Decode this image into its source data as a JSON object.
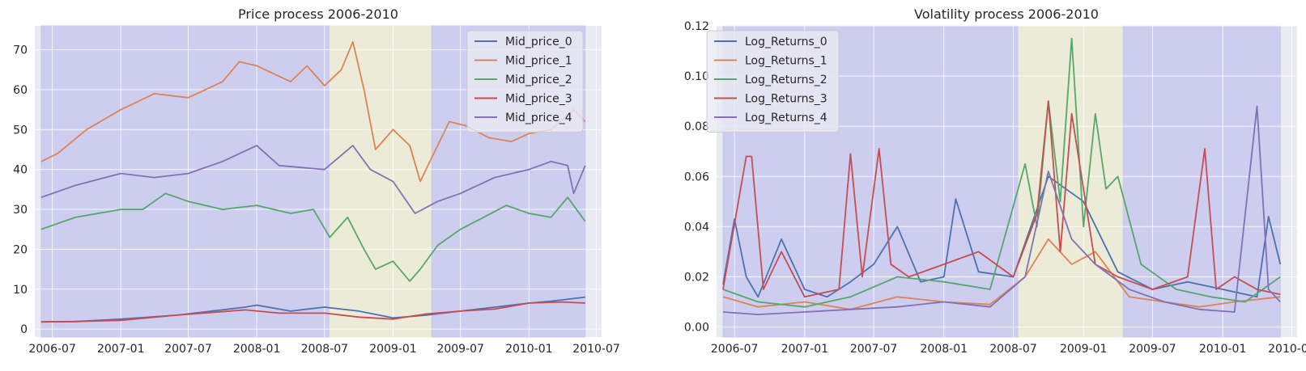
{
  "chart_data": [
    {
      "type": "line",
      "title": "Price process 2006-2010",
      "xlabel": "",
      "ylabel": "",
      "x_range": [
        "2006-05-15",
        "2010-07-15"
      ],
      "ylim": [
        -2,
        76
      ],
      "x_ticks": [
        "2006-07",
        "2007-01",
        "2007-07",
        "2008-01",
        "2008-07",
        "2009-01",
        "2009-07",
        "2010-01",
        "2010-07"
      ],
      "y_ticks": [
        0,
        10,
        20,
        30,
        40,
        50,
        60,
        70
      ],
      "grid": true,
      "legend_position": "top-right",
      "regions": [
        {
          "start": "2006-06-01",
          "end": "2008-07-15",
          "color": "#c8c8f0"
        },
        {
          "start": "2008-07-15",
          "end": "2009-04-15",
          "color": "#ebebd4"
        },
        {
          "start": "2009-04-15",
          "end": "2010-06-01",
          "color": "#c8c8f0"
        }
      ],
      "series": [
        {
          "name": "Mid_price_0",
          "color": "#4c72b0",
          "x": [
            "2006-06-01",
            "2006-09-01",
            "2007-01-01",
            "2007-06-01",
            "2007-12-01",
            "2008-01-01",
            "2008-04-01",
            "2008-07-01",
            "2008-10-01",
            "2009-01-01",
            "2009-04-01",
            "2009-07-01",
            "2009-10-01",
            "2010-01-01",
            "2010-03-01",
            "2010-06-01"
          ],
          "values": [
            1.8,
            1.9,
            2.5,
            3.5,
            5.5,
            6.0,
            4.5,
            5.5,
            4.5,
            2.8,
            3.5,
            4.5,
            5.5,
            6.5,
            7.0,
            8.0
          ]
        },
        {
          "name": "Mid_price_1",
          "color": "#dd8452",
          "x": [
            "2006-06-01",
            "2006-07-15",
            "2006-10-01",
            "2007-01-01",
            "2007-04-01",
            "2007-07-01",
            "2007-10-01",
            "2007-11-15",
            "2008-01-01",
            "2008-04-01",
            "2008-05-15",
            "2008-07-01",
            "2008-08-15",
            "2008-09-15",
            "2008-10-15",
            "2008-11-15",
            "2009-01-01",
            "2009-02-15",
            "2009-03-15",
            "2009-04-15",
            "2009-06-01",
            "2009-07-15",
            "2009-09-15",
            "2009-11-15",
            "2010-01-01",
            "2010-03-01",
            "2010-05-01",
            "2010-06-01"
          ],
          "values": [
            42,
            44,
            50,
            55,
            59,
            58,
            62,
            67,
            66,
            62,
            66,
            61,
            65,
            72,
            60,
            45,
            50,
            46,
            37,
            43,
            52,
            51,
            48,
            47,
            49,
            50,
            55,
            52
          ]
        },
        {
          "name": "Mid_price_2",
          "color": "#55a868",
          "x": [
            "2006-06-01",
            "2006-09-01",
            "2007-01-01",
            "2007-03-01",
            "2007-05-01",
            "2007-07-01",
            "2007-10-01",
            "2008-01-01",
            "2008-04-01",
            "2008-06-01",
            "2008-07-15",
            "2008-09-01",
            "2008-10-15",
            "2008-11-15",
            "2009-01-01",
            "2009-02-15",
            "2009-03-15",
            "2009-05-01",
            "2009-07-01",
            "2009-09-01",
            "2009-11-01",
            "2010-01-01",
            "2010-03-01",
            "2010-04-15",
            "2010-06-01"
          ],
          "values": [
            25,
            28,
            30,
            30,
            34,
            32,
            30,
            31,
            29,
            30,
            23,
            28,
            20,
            15,
            17,
            12,
            15,
            21,
            25,
            28,
            31,
            29,
            28,
            33,
            27
          ]
        },
        {
          "name": "Mid_price_3",
          "color": "#c44e52",
          "x": [
            "2006-06-01",
            "2006-09-01",
            "2007-01-01",
            "2007-06-01",
            "2007-12-01",
            "2008-03-01",
            "2008-07-01",
            "2008-10-01",
            "2009-01-01",
            "2009-04-01",
            "2009-07-01",
            "2009-10-01",
            "2010-01-01",
            "2010-04-01",
            "2010-06-01"
          ],
          "values": [
            1.8,
            1.9,
            2.2,
            3.5,
            4.8,
            4.0,
            4.0,
            3.0,
            2.5,
            3.8,
            4.5,
            5.0,
            6.5,
            6.8,
            6.5
          ]
        },
        {
          "name": "Mid_price_4",
          "color": "#8172b3",
          "x": [
            "2006-06-01",
            "2006-09-01",
            "2007-01-01",
            "2007-04-01",
            "2007-07-01",
            "2007-10-01",
            "2008-01-01",
            "2008-03-01",
            "2008-07-01",
            "2008-09-15",
            "2008-11-01",
            "2009-01-01",
            "2009-03-01",
            "2009-05-01",
            "2009-07-01",
            "2009-10-01",
            "2010-01-01",
            "2010-03-01",
            "2010-04-15",
            "2010-05-01",
            "2010-06-01"
          ],
          "values": [
            33,
            36,
            39,
            38,
            39,
            42,
            46,
            41,
            40,
            46,
            40,
            37,
            29,
            32,
            34,
            38,
            40,
            42,
            41,
            34,
            41
          ]
        }
      ]
    },
    {
      "type": "line",
      "title": "Volatility process 2006-2010",
      "xlabel": "",
      "ylabel": "",
      "x_range": [
        "2006-05-15",
        "2010-07-15"
      ],
      "ylim": [
        -0.004,
        0.12
      ],
      "x_ticks": [
        "2006-07",
        "2007-01",
        "2007-07",
        "2008-01",
        "2008-07",
        "2009-01",
        "2009-07",
        "2010-01",
        "2010-07"
      ],
      "y_ticks": [
        "0.00",
        "0.02",
        "0.04",
        "0.06",
        "0.08",
        "0.10",
        "0.12"
      ],
      "grid": true,
      "legend_position": "top-left",
      "regions": [
        {
          "start": "2006-06-01",
          "end": "2008-07-15",
          "color": "#c8c8f0"
        },
        {
          "start": "2008-07-15",
          "end": "2009-04-15",
          "color": "#ebebd4"
        },
        {
          "start": "2009-04-15",
          "end": "2010-06-01",
          "color": "#c8c8f0"
        }
      ],
      "series": [
        {
          "name": "Log_Returns_0",
          "color": "#4c72b0",
          "x": [
            "2006-06-01",
            "2006-07-01",
            "2006-08-01",
            "2006-09-01",
            "2006-11-01",
            "2007-01-01",
            "2007-03-01",
            "2007-05-01",
            "2007-07-01",
            "2007-09-01",
            "2007-11-01",
            "2008-01-01",
            "2008-02-01",
            "2008-04-01",
            "2008-07-01",
            "2008-10-01",
            "2009-01-01",
            "2009-04-01",
            "2009-07-01",
            "2009-10-01",
            "2010-01-01",
            "2010-04-01",
            "2010-05-01",
            "2010-06-01"
          ],
          "values": [
            0.017,
            0.043,
            0.02,
            0.012,
            0.035,
            0.015,
            0.012,
            0.018,
            0.025,
            0.04,
            0.018,
            0.02,
            0.051,
            0.022,
            0.02,
            0.06,
            0.05,
            0.022,
            0.015,
            0.018,
            0.015,
            0.012,
            0.044,
            0.025
          ]
        },
        {
          "name": "Log_Returns_1",
          "color": "#dd8452",
          "x": [
            "2006-06-01",
            "2006-09-01",
            "2007-01-01",
            "2007-05-01",
            "2007-09-01",
            "2008-01-01",
            "2008-05-01",
            "2008-08-01",
            "2008-10-01",
            "2008-12-01",
            "2009-02-01",
            "2009-05-01",
            "2009-08-01",
            "2009-11-01",
            "2010-02-01",
            "2010-06-01"
          ],
          "values": [
            0.012,
            0.008,
            0.01,
            0.007,
            0.012,
            0.01,
            0.009,
            0.02,
            0.035,
            0.025,
            0.03,
            0.012,
            0.01,
            0.008,
            0.01,
            0.012
          ]
        },
        {
          "name": "Log_Returns_2",
          "color": "#55a868",
          "x": [
            "2006-06-01",
            "2006-09-01",
            "2007-01-01",
            "2007-05-01",
            "2007-09-01",
            "2008-01-01",
            "2008-05-01",
            "2008-08-01",
            "2008-09-01",
            "2008-10-01",
            "2008-11-01",
            "2008-12-01",
            "2009-01-01",
            "2009-02-01",
            "2009-03-01",
            "2009-04-01",
            "2009-06-01",
            "2009-09-01",
            "2009-12-01",
            "2010-03-01",
            "2010-06-01"
          ],
          "values": [
            0.015,
            0.01,
            0.008,
            0.012,
            0.02,
            0.018,
            0.015,
            0.065,
            0.04,
            0.09,
            0.05,
            0.115,
            0.04,
            0.085,
            0.055,
            0.06,
            0.025,
            0.015,
            0.012,
            0.01,
            0.02
          ]
        },
        {
          "name": "Log_Returns_3",
          "color": "#c44e52",
          "x": [
            "2006-06-01",
            "2006-08-01",
            "2006-08-15",
            "2006-09-15",
            "2006-11-01",
            "2007-01-01",
            "2007-04-01",
            "2007-05-01",
            "2007-06-01",
            "2007-07-15",
            "2007-08-15",
            "2007-10-01",
            "2008-01-01",
            "2008-04-01",
            "2008-07-01",
            "2008-09-01",
            "2008-10-01",
            "2008-11-01",
            "2008-12-01",
            "2009-02-01",
            "2009-04-01",
            "2009-07-01",
            "2009-10-01",
            "2009-11-15",
            "2009-12-15",
            "2010-02-01",
            "2010-04-01",
            "2010-06-01"
          ],
          "values": [
            0.015,
            0.068,
            0.068,
            0.015,
            0.03,
            0.012,
            0.015,
            0.069,
            0.02,
            0.071,
            0.025,
            0.02,
            0.025,
            0.03,
            0.02,
            0.045,
            0.09,
            0.03,
            0.085,
            0.025,
            0.02,
            0.015,
            0.02,
            0.071,
            0.015,
            0.02,
            0.015,
            0.013
          ]
        },
        {
          "name": "Log_Returns_4",
          "color": "#8172b3",
          "x": [
            "2006-06-01",
            "2006-09-01",
            "2007-01-01",
            "2007-05-01",
            "2007-09-01",
            "2008-01-01",
            "2008-05-01",
            "2008-08-01",
            "2008-10-01",
            "2008-12-01",
            "2009-02-01",
            "2009-05-01",
            "2009-08-01",
            "2009-11-01",
            "2010-02-01",
            "2010-04-01",
            "2010-05-01",
            "2010-06-01"
          ],
          "values": [
            0.006,
            0.005,
            0.006,
            0.007,
            0.008,
            0.01,
            0.008,
            0.02,
            0.062,
            0.035,
            0.025,
            0.015,
            0.01,
            0.007,
            0.006,
            0.088,
            0.015,
            0.01
          ]
        }
      ]
    }
  ]
}
